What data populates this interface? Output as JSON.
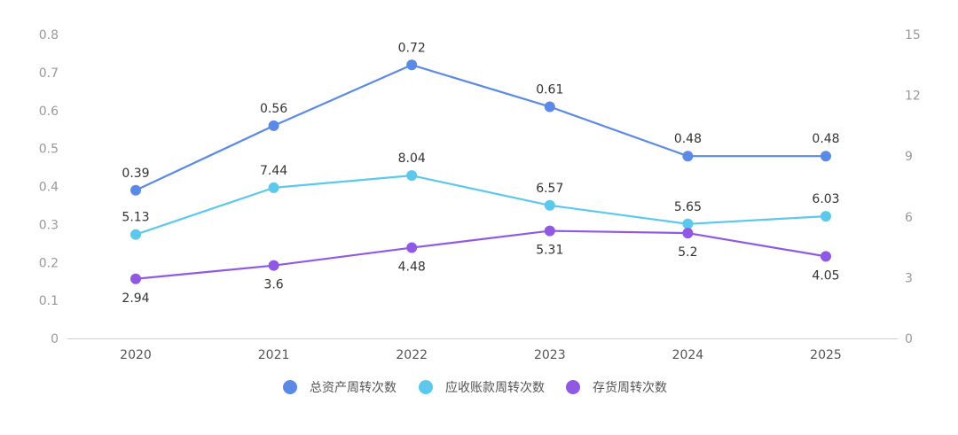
{
  "chart_data": {
    "type": "line",
    "categories": [
      "2020",
      "2021",
      "2022",
      "2023",
      "2024",
      "2025"
    ],
    "y_left": {
      "min": 0,
      "max": 0.8,
      "ticks": [
        "0",
        "0.1",
        "0.2",
        "0.3",
        "0.4",
        "0.5",
        "0.6",
        "0.7",
        "0.8"
      ]
    },
    "y_right": {
      "min": 0,
      "max": 15,
      "ticks": [
        "0",
        "3",
        "6",
        "9",
        "12",
        "15"
      ]
    },
    "series": [
      {
        "name": "总资产周转次数",
        "axis": "left",
        "color": "#5B8AE6",
        "values": [
          0.39,
          0.56,
          0.72,
          0.61,
          0.48,
          0.48
        ],
        "labels": [
          "0.39",
          "0.56",
          "0.72",
          "0.61",
          "0.48",
          "0.48"
        ],
        "label_pos": [
          "above",
          "above",
          "above",
          "above",
          "above",
          "above"
        ]
      },
      {
        "name": "应收账款周转次数",
        "axis": "right",
        "color": "#5BC8EC",
        "values": [
          5.13,
          7.44,
          8.04,
          6.57,
          5.65,
          6.03
        ],
        "labels": [
          "5.13",
          "7.44",
          "8.04",
          "6.57",
          "5.65",
          "6.03"
        ],
        "label_pos": [
          "above",
          "above",
          "above",
          "above",
          "above",
          "above"
        ]
      },
      {
        "name": "存货周转次数",
        "axis": "right",
        "color": "#9159E3",
        "values": [
          2.94,
          3.6,
          4.48,
          5.31,
          5.2,
          4.05
        ],
        "labels": [
          "2.94",
          "3.6",
          "4.48",
          "5.31",
          "5.2",
          "4.05"
        ],
        "label_pos": [
          "below",
          "below",
          "below",
          "below",
          "below",
          "below"
        ]
      }
    ],
    "legend": [
      "总资产周转次数",
      "应收账款周转次数",
      "存货周转次数"
    ],
    "legend_position": "bottom",
    "grid": false
  }
}
